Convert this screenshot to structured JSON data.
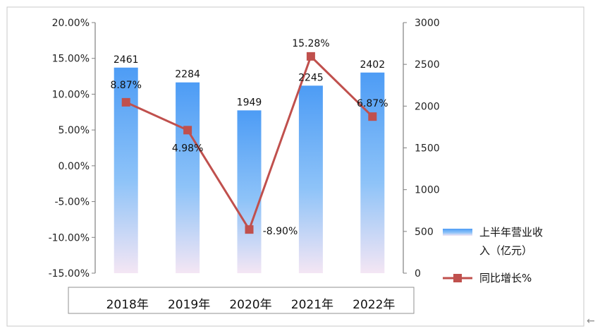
{
  "chart_data": {
    "type": "bar",
    "categories": [
      "2018年",
      "2019年",
      "2020年",
      "2021年",
      "2022年"
    ],
    "series": [
      {
        "name": "上半年营业收入（亿元）",
        "type": "bar",
        "axis": "right",
        "values": [
          2461,
          2284,
          1949,
          2245,
          2402
        ],
        "labels": [
          "2461",
          "2284",
          "1949",
          "2245",
          "2402"
        ]
      },
      {
        "name": "同比增长%",
        "type": "line",
        "axis": "left",
        "values": [
          8.87,
          4.98,
          -8.9,
          15.28,
          6.87
        ],
        "labels": [
          "8.87%",
          "4.98%",
          "-8.90%",
          "15.28%",
          "6.87%"
        ]
      }
    ],
    "y_left": {
      "min": -15,
      "max": 20,
      "step": 5,
      "ticks": [
        "20.00%",
        "15.00%",
        "10.00%",
        "5.00%",
        "0.00%",
        "-5.00%",
        "-10.00%",
        "-15.00%"
      ]
    },
    "y_right": {
      "min": 0,
      "max": 3000,
      "step": 500,
      "ticks": [
        "3000",
        "2500",
        "2000",
        "1500",
        "1000",
        "500",
        "0"
      ]
    },
    "legend": {
      "position": "right",
      "bar_label_line1": "上半年营业收",
      "bar_label_line2": "入（亿元）",
      "line_label": "同比增长%"
    },
    "colors": {
      "bar_top": "#4d9cf5",
      "bar_mid": "#8ec3f8",
      "bar_bottom": "#f4e6f4",
      "line": "#c0504d",
      "marker": "#c0504d",
      "axis": "#808080"
    },
    "grid": false
  }
}
